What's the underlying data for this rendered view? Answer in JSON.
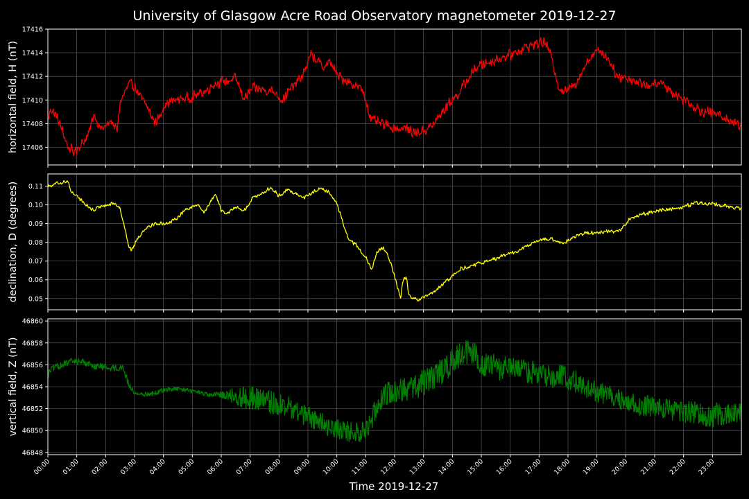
{
  "title": "University of Glasgow Acre Road Observatory magnetometer 2019-12-27",
  "xlabel": "Time 2019-12-27",
  "x_ticks": [
    "00:00",
    "01:00",
    "02:00",
    "03:00",
    "04:00",
    "05:00",
    "06:00",
    "07:00",
    "08:00",
    "09:00",
    "10:00",
    "11:00",
    "12:00",
    "13:00",
    "14:00",
    "15:00",
    "16:00",
    "17:00",
    "18:00",
    "19:00",
    "20:00",
    "21:00",
    "22:00",
    "23:00"
  ],
  "colors": {
    "background": "#000000",
    "grid": "#666666",
    "axes": "#ffffff",
    "H": "#ff0000",
    "D": "#ffff00",
    "Z": "#008000"
  },
  "chart_data": [
    {
      "type": "line",
      "ylabel": "horizontal field, H (nT)",
      "ylim": [
        17404.5,
        17416
      ],
      "yticks": [
        "17406",
        "17408",
        "17410",
        "17412",
        "17414",
        "17416"
      ],
      "xlim": [
        0,
        24
      ],
      "grid": true,
      "series": [
        {
          "color": "#ff0000",
          "noise": 0.35,
          "x": [
            0,
            0.1,
            0.3,
            0.5,
            0.7,
            0.9,
            1.2,
            1.4,
            1.6,
            1.8,
            2.0,
            2.2,
            2.4,
            2.5,
            2.6,
            2.8,
            3.0,
            3.2,
            3.4,
            3.7,
            3.9,
            4.0,
            4.3,
            4.6,
            4.9,
            5.2,
            5.5,
            5.7,
            5.9,
            6.2,
            6.5,
            6.8,
            7.1,
            7.4,
            7.7,
            7.9,
            8.1,
            8.5,
            8.8,
            9.1,
            9.3,
            9.5,
            9.8,
            10.0,
            10.3,
            10.6,
            10.9,
            11.2,
            11.5,
            11.8,
            12.1,
            12.4,
            12.7,
            13.0,
            13.3,
            13.6,
            13.9,
            14.2,
            14.5,
            14.8,
            15.1,
            15.4,
            15.7,
            16.0,
            16.3,
            16.6,
            16.9,
            17.2,
            17.4,
            17.7,
            17.9,
            18.2,
            18.5,
            18.8,
            19.1,
            19.4,
            19.7,
            20.0,
            20.3,
            20.6,
            20.9,
            21.2,
            21.5,
            21.8,
            22.1,
            22.4,
            22.7,
            23.0,
            23.3,
            23.6,
            23.99
          ],
          "y": [
            17408.2,
            17409.3,
            17408.6,
            17407.4,
            17406.0,
            17405.6,
            17406.4,
            17407.0,
            17408.9,
            17407.6,
            17407.7,
            17408.3,
            17407.3,
            17409.8,
            17410.3,
            17411.3,
            17411.2,
            17410.2,
            17409.6,
            17408.1,
            17408.6,
            17409.6,
            17409.9,
            17410.1,
            17410.2,
            17410.5,
            17410.8,
            17411.3,
            17411.5,
            17411.6,
            17411.8,
            17410.1,
            17411.0,
            17410.9,
            17410.8,
            17410.6,
            17410.0,
            17411.2,
            17412.0,
            17413.8,
            17413.4,
            17412.8,
            17413.2,
            17412.1,
            17411.7,
            17411.3,
            17410.8,
            17408.3,
            17408.0,
            17407.8,
            17407.6,
            17407.6,
            17407.2,
            17407.4,
            17407.8,
            17408.8,
            17409.8,
            17410.5,
            17411.6,
            17412.7,
            17413.1,
            17413.3,
            17413.6,
            17413.8,
            17414.2,
            17414.5,
            17414.8,
            17414.9,
            17413.8,
            17411.0,
            17410.7,
            17411.2,
            17412.5,
            17413.8,
            17414.2,
            17413.5,
            17412.0,
            17411.9,
            17411.6,
            17411.4,
            17411.2,
            17411.5,
            17410.9,
            17410.3,
            17410.0,
            17409.4,
            17409.0,
            17408.9,
            17408.7,
            17408.2,
            17407.9
          ]
        }
      ]
    },
    {
      "type": "line",
      "ylabel": "declination, D (degrees)",
      "ylim": [
        0.044,
        0.1165
      ],
      "yticks": [
        "0.05",
        "0.06",
        "0.07",
        "0.08",
        "0.09",
        "0.10",
        "0.11"
      ],
      "xlim": [
        0,
        24
      ],
      "grid": true,
      "series": [
        {
          "color": "#ffff00",
          "noise": 0.0008,
          "x": [
            0,
            0.2,
            0.5,
            0.7,
            0.8,
            1.0,
            1.3,
            1.6,
            1.9,
            2.1,
            2.3,
            2.5,
            2.6,
            2.8,
            2.9,
            3.1,
            3.4,
            3.7,
            4.0,
            4.3,
            4.6,
            4.8,
            5.0,
            5.2,
            5.4,
            5.6,
            5.8,
            6.0,
            6.2,
            6.5,
            6.8,
            7.1,
            7.4,
            7.7,
            8.0,
            8.3,
            8.6,
            8.9,
            9.2,
            9.4,
            9.7,
            10.0,
            10.2,
            10.4,
            10.7,
            11.0,
            11.2,
            11.4,
            11.6,
            11.8,
            12.0,
            12.2,
            12.3,
            12.4,
            12.5,
            12.8,
            13.1,
            13.4,
            13.7,
            14.0,
            14.3,
            14.6,
            15.0,
            15.4,
            15.8,
            16.2,
            16.6,
            17.0,
            17.4,
            17.8,
            18.2,
            18.6,
            19.0,
            19.4,
            19.8,
            20.1,
            20.4,
            20.8,
            21.2,
            21.6,
            22.0,
            22.4,
            22.8,
            23.2,
            23.6,
            23.99
          ],
          "y": [
            0.11,
            0.111,
            0.112,
            0.113,
            0.107,
            0.105,
            0.1,
            0.097,
            0.1,
            0.1,
            0.101,
            0.098,
            0.092,
            0.078,
            0.076,
            0.082,
            0.088,
            0.09,
            0.09,
            0.091,
            0.095,
            0.098,
            0.099,
            0.1,
            0.096,
            0.101,
            0.106,
            0.097,
            0.095,
            0.099,
            0.097,
            0.104,
            0.106,
            0.109,
            0.105,
            0.108,
            0.106,
            0.104,
            0.107,
            0.109,
            0.107,
            0.101,
            0.091,
            0.082,
            0.078,
            0.072,
            0.065,
            0.075,
            0.077,
            0.072,
            0.062,
            0.05,
            0.06,
            0.062,
            0.051,
            0.049,
            0.051,
            0.054,
            0.058,
            0.062,
            0.066,
            0.067,
            0.069,
            0.071,
            0.073,
            0.075,
            0.078,
            0.081,
            0.082,
            0.079,
            0.083,
            0.085,
            0.085,
            0.086,
            0.086,
            0.092,
            0.094,
            0.096,
            0.097,
            0.098,
            0.099,
            0.101,
            0.101,
            0.1,
            0.099,
            0.098
          ]
        }
      ]
    },
    {
      "type": "line",
      "ylabel": "vertical field, Z (nT)",
      "ylim": [
        46847.8,
        46860.2
      ],
      "yticks": [
        "46848",
        "46850",
        "46852",
        "46854",
        "46856",
        "46858",
        "46860"
      ],
      "xlim": [
        0,
        24
      ],
      "grid": true,
      "series": [
        {
          "color": "#008000",
          "x": [
            0,
            0.1,
            0.4,
            0.8,
            1.2,
            1.6,
            2.0,
            2.3,
            2.6,
            2.8,
            3.0,
            3.3,
            3.7,
            4.0,
            4.4,
            4.8,
            5.2,
            5.6,
            6.0,
            6.3,
            6.6,
            7.0,
            7.4,
            7.8,
            8.2,
            8.6,
            9.0,
            9.4,
            9.8,
            10.2,
            10.6,
            11.0,
            11.2,
            11.4,
            11.7,
            12.0,
            12.3,
            12.6,
            13.0,
            13.4,
            13.8,
            14.2,
            14.5,
            14.8,
            15.1,
            15.4,
            15.8,
            16.2,
            16.6,
            17.0,
            17.4,
            17.8,
            18.2,
            18.6,
            19.0,
            19.4,
            19.8,
            20.2,
            20.6,
            21.0,
            21.4,
            21.8,
            22.2,
            22.6,
            23.0,
            23.4,
            23.8,
            23.99
          ],
          "y": [
            46855.0,
            46855.6,
            46855.9,
            46856.3,
            46856.3,
            46855.9,
            46855.8,
            46855.7,
            46855.8,
            46854.2,
            46853.4,
            46853.3,
            46853.4,
            46853.7,
            46853.8,
            46853.7,
            46853.5,
            46853.2,
            46853.3,
            46853.2,
            46853.1,
            46853.0,
            46852.8,
            46852.5,
            46852.2,
            46851.8,
            46851.3,
            46850.8,
            46850.3,
            46850.0,
            46849.8,
            46849.9,
            46851.0,
            46852.5,
            46853.4,
            46853.6,
            46853.8,
            46853.8,
            46854.4,
            46855.0,
            46855.8,
            46856.7,
            46857.2,
            46856.8,
            46856.0,
            46855.8,
            46855.6,
            46855.5,
            46855.4,
            46855.2,
            46855.0,
            46854.9,
            46854.6,
            46853.9,
            46853.5,
            46853.2,
            46852.8,
            46852.5,
            46852.3,
            46852.2,
            46851.9,
            46851.7,
            46851.6,
            46851.5,
            46851.4,
            46851.6,
            46851.7,
            46851.6
          ],
          "noise": [
            0.4,
            0.3,
            0.3,
            0.3,
            0.3,
            0.3,
            0.3,
            0.3,
            0.3,
            0.3,
            0.2,
            0.2,
            0.2,
            0.2,
            0.2,
            0.2,
            0.2,
            0.2,
            0.3,
            0.6,
            0.9,
            1.1,
            1.1,
            1.1,
            1.0,
            1.0,
            1.0,
            0.9,
            0.9,
            0.9,
            0.9,
            0.9,
            1.0,
            1.0,
            1.1,
            1.1,
            1.1,
            1.1,
            1.2,
            1.2,
            1.2,
            1.2,
            1.2,
            1.2,
            1.2,
            1.2,
            1.2,
            1.1,
            1.1,
            1.1,
            1.1,
            1.1,
            1.0,
            1.0,
            1.0,
            0.9,
            0.9,
            0.9,
            1.0,
            1.0,
            1.0,
            1.1,
            1.1,
            1.1,
            1.1,
            1.1,
            1.0,
            0.9
          ]
        }
      ]
    }
  ]
}
